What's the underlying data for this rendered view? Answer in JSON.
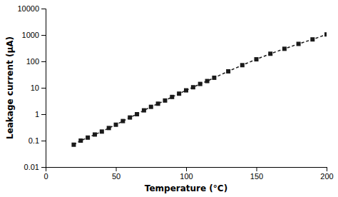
{
  "chart_data": {
    "type": "line",
    "xlabel": "Temperature (°C)",
    "ylabel": "Leakage current (μA)",
    "x": [
      20,
      25,
      30,
      35,
      40,
      45,
      50,
      55,
      60,
      65,
      70,
      75,
      80,
      85,
      90,
      95,
      100,
      105,
      110,
      115,
      120,
      130,
      140,
      150,
      160,
      170,
      180,
      190,
      200
    ],
    "values": [
      0.07,
      0.1,
      0.13,
      0.17,
      0.22,
      0.3,
      0.4,
      0.55,
      0.75,
      1.0,
      1.4,
      1.9,
      2.5,
      3.3,
      4.5,
      6.0,
      8.0,
      10.5,
      14,
      18,
      24,
      42,
      72,
      120,
      195,
      300,
      460,
      680,
      1050
    ],
    "xlim": [
      0,
      200
    ],
    "ylim": [
      0.01,
      10000
    ],
    "xticks": [
      0,
      50,
      100,
      150,
      200
    ],
    "yticks": [
      0.01,
      0.1,
      1,
      10,
      100,
      1000,
      10000
    ],
    "log": "y",
    "grid": false,
    "color": "#1a1a1a",
    "marker": "square",
    "line_style": "dashed"
  }
}
